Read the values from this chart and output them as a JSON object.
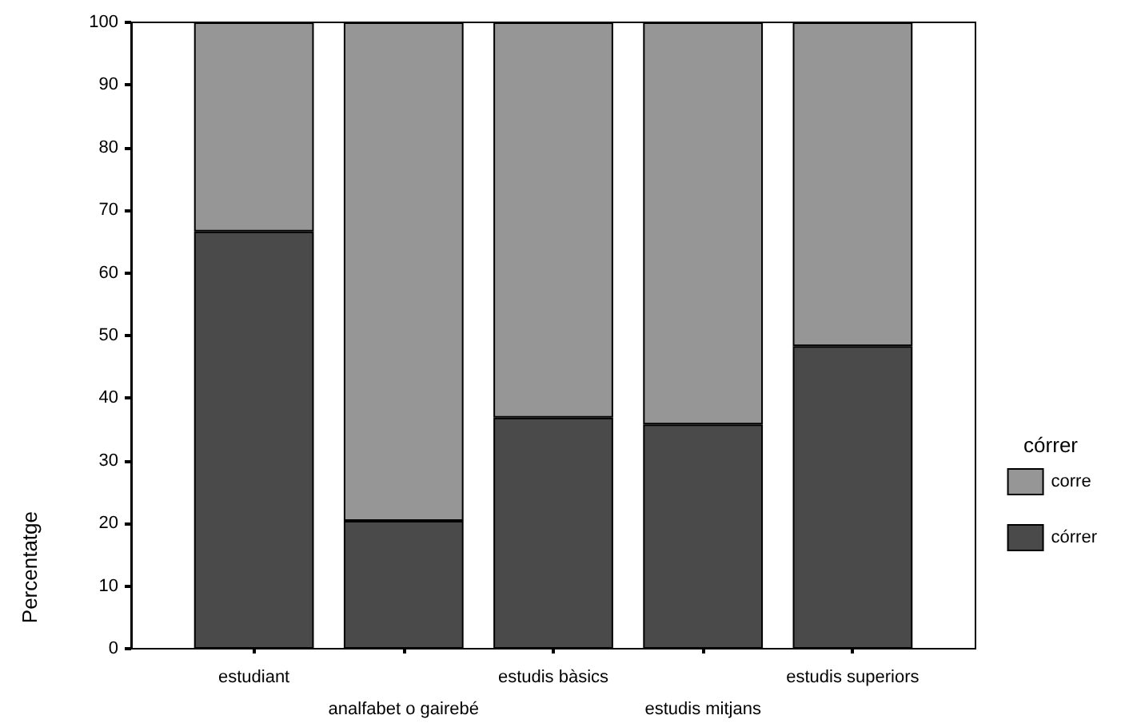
{
  "chart_data": {
    "type": "bar",
    "stacked": true,
    "ylabel": "Percentatge",
    "legend_title": "córrer",
    "legend": "right",
    "categories": [
      "estudiant",
      "analfabet o gairebé",
      "estudis bàsics",
      "estudis mitjans",
      "estudis superiors"
    ],
    "series": [
      {
        "name": "córrer",
        "color": "#4a4a4a",
        "values": [
          66.6,
          20.4,
          36.9,
          35.8,
          48.3
        ]
      },
      {
        "name": "corre",
        "color": "#969696",
        "values": [
          33.4,
          79.6,
          63.1,
          64.2,
          51.7
        ]
      }
    ],
    "ylim": [
      0,
      100
    ],
    "yticks": [
      0,
      10,
      20,
      30,
      40,
      50,
      60,
      70,
      80,
      90,
      100
    ],
    "grid": false
  }
}
